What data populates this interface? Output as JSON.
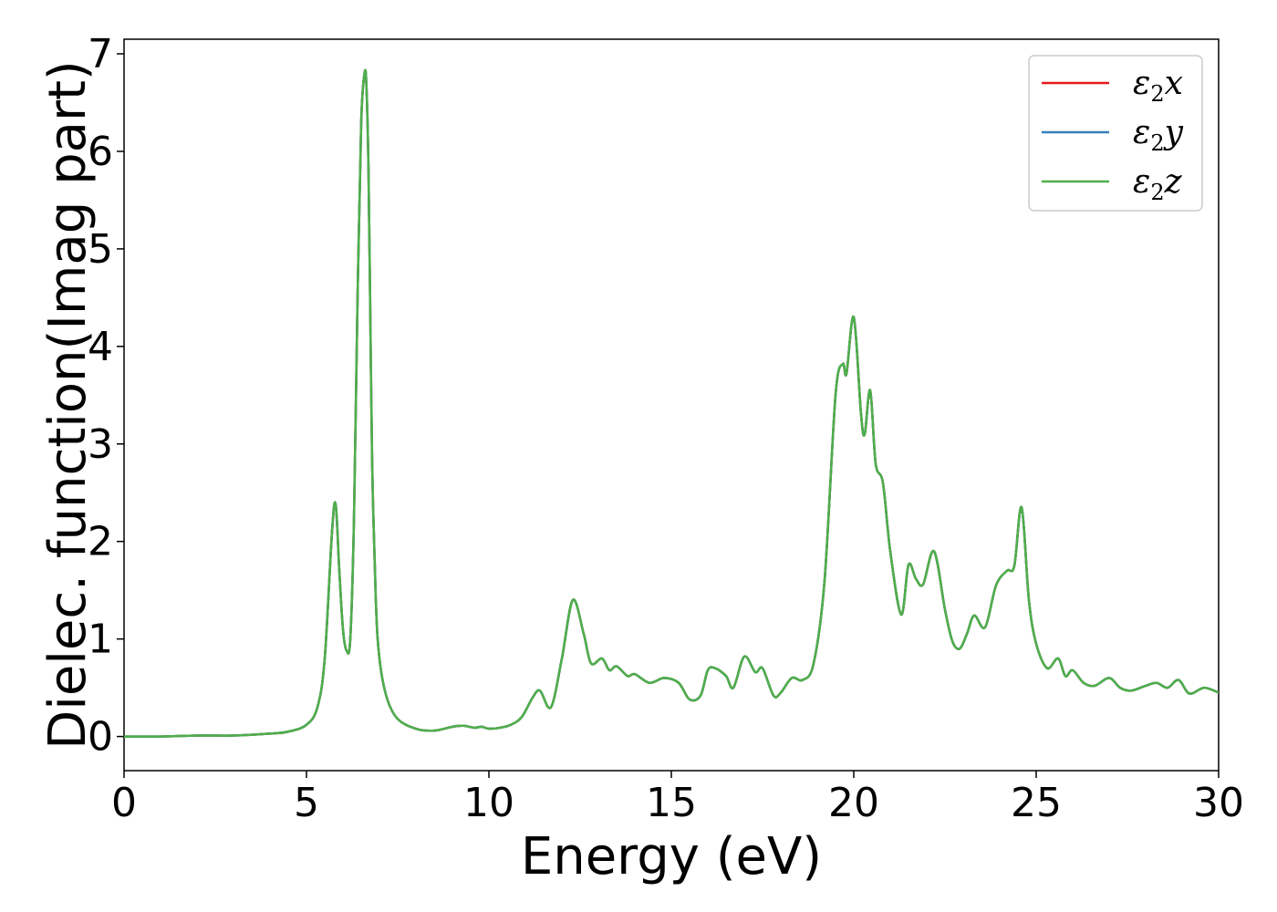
{
  "chart_data": {
    "type": "line",
    "title": "",
    "xlabel": "Energy (eV)",
    "ylabel": "Dielec. function(Imag part)",
    "xlim": [
      0,
      30
    ],
    "ylim": [
      -0.35,
      7.15
    ],
    "xticks": [
      0,
      5,
      10,
      15,
      20,
      25,
      30
    ],
    "xtick_labels": [
      "0",
      "5",
      "10",
      "15",
      "20",
      "25",
      "30"
    ],
    "yticks": [
      0,
      1,
      2,
      3,
      4,
      5,
      6,
      7
    ],
    "ytick_labels": [
      "0",
      "1",
      "2",
      "3",
      "4",
      "5",
      "6",
      "7"
    ],
    "grid": false,
    "legend_position": "top-right",
    "x": [
      0,
      1,
      2,
      3,
      4,
      4.5,
      5,
      5.3,
      5.5,
      5.7,
      5.8,
      5.9,
      6.0,
      6.1,
      6.2,
      6.3,
      6.4,
      6.5,
      6.6,
      6.65,
      6.7,
      6.75,
      6.8,
      6.9,
      7.0,
      7.2,
      7.5,
      8.0,
      8.5,
      9.0,
      9.3,
      9.6,
      9.8,
      10.0,
      10.3,
      10.6,
      10.9,
      11.2,
      11.4,
      11.7,
      12.0,
      12.3,
      12.6,
      12.8,
      13.1,
      13.3,
      13.5,
      13.8,
      14.0,
      14.4,
      14.8,
      15.2,
      15.5,
      15.8,
      16.0,
      16.2,
      16.5,
      16.7,
      17.0,
      17.3,
      17.5,
      17.8,
      18.0,
      18.3,
      18.6,
      18.9,
      19.2,
      19.5,
      19.7,
      19.8,
      20.0,
      20.2,
      20.3,
      20.45,
      20.6,
      20.8,
      21.0,
      21.3,
      21.5,
      21.7,
      21.9,
      22.2,
      22.5,
      22.7,
      22.9,
      23.1,
      23.3,
      23.6,
      23.9,
      24.2,
      24.4,
      24.6,
      24.8,
      25.0,
      25.3,
      25.6,
      25.8,
      26.0,
      26.3,
      26.6,
      27.0,
      27.3,
      27.6,
      28.0,
      28.3,
      28.6,
      28.9,
      29.2,
      29.6,
      30.0
    ],
    "series": [
      {
        "name": "ε2x",
        "color": "#e41a1c",
        "values": [
          0.0,
          0.0,
          0.01,
          0.01,
          0.03,
          0.05,
          0.12,
          0.3,
          0.8,
          2.1,
          2.38,
          1.7,
          1.1,
          0.88,
          1.0,
          2.2,
          4.5,
          6.3,
          6.82,
          6.6,
          5.8,
          4.3,
          2.8,
          1.4,
          0.8,
          0.4,
          0.18,
          0.08,
          0.06,
          0.1,
          0.11,
          0.09,
          0.1,
          0.08,
          0.09,
          0.12,
          0.2,
          0.4,
          0.47,
          0.3,
          0.8,
          1.4,
          1.05,
          0.75,
          0.8,
          0.68,
          0.72,
          0.62,
          0.64,
          0.55,
          0.6,
          0.55,
          0.38,
          0.42,
          0.68,
          0.7,
          0.62,
          0.5,
          0.82,
          0.66,
          0.7,
          0.42,
          0.45,
          0.6,
          0.58,
          0.75,
          1.6,
          3.5,
          3.82,
          3.72,
          4.3,
          3.3,
          3.1,
          3.55,
          2.8,
          2.6,
          1.9,
          1.25,
          1.76,
          1.62,
          1.56,
          1.9,
          1.3,
          0.98,
          0.9,
          1.05,
          1.24,
          1.12,
          1.55,
          1.7,
          1.75,
          2.35,
          1.4,
          0.95,
          0.7,
          0.8,
          0.62,
          0.68,
          0.55,
          0.52,
          0.6,
          0.5,
          0.47,
          0.52,
          0.55,
          0.5,
          0.58,
          0.44,
          0.5,
          0.45
        ]
      },
      {
        "name": "ε2y",
        "color": "#377eb8",
        "values": [
          0.0,
          0.0,
          0.01,
          0.01,
          0.03,
          0.05,
          0.12,
          0.3,
          0.8,
          2.1,
          2.38,
          1.7,
          1.1,
          0.88,
          1.0,
          2.2,
          4.5,
          6.3,
          6.82,
          6.6,
          5.8,
          4.3,
          2.8,
          1.4,
          0.8,
          0.4,
          0.18,
          0.08,
          0.06,
          0.1,
          0.11,
          0.09,
          0.1,
          0.08,
          0.09,
          0.12,
          0.2,
          0.4,
          0.47,
          0.3,
          0.8,
          1.4,
          1.05,
          0.75,
          0.8,
          0.68,
          0.72,
          0.62,
          0.64,
          0.55,
          0.6,
          0.55,
          0.38,
          0.42,
          0.68,
          0.7,
          0.62,
          0.5,
          0.82,
          0.66,
          0.7,
          0.42,
          0.45,
          0.6,
          0.58,
          0.75,
          1.6,
          3.5,
          3.82,
          3.72,
          4.3,
          3.3,
          3.1,
          3.55,
          2.8,
          2.6,
          1.9,
          1.25,
          1.76,
          1.62,
          1.56,
          1.9,
          1.3,
          0.98,
          0.9,
          1.05,
          1.24,
          1.12,
          1.55,
          1.7,
          1.75,
          2.35,
          1.4,
          0.95,
          0.7,
          0.8,
          0.62,
          0.68,
          0.55,
          0.52,
          0.6,
          0.5,
          0.47,
          0.52,
          0.55,
          0.5,
          0.58,
          0.44,
          0.5,
          0.45
        ]
      },
      {
        "name": "ε2z",
        "color": "#4daf4a",
        "values": [
          0.0,
          0.0,
          0.01,
          0.01,
          0.03,
          0.05,
          0.12,
          0.3,
          0.8,
          2.1,
          2.38,
          1.7,
          1.1,
          0.88,
          1.0,
          2.2,
          4.5,
          6.3,
          6.82,
          6.6,
          5.8,
          4.3,
          2.8,
          1.4,
          0.8,
          0.4,
          0.18,
          0.08,
          0.06,
          0.1,
          0.11,
          0.09,
          0.1,
          0.08,
          0.09,
          0.12,
          0.2,
          0.4,
          0.47,
          0.3,
          0.8,
          1.4,
          1.05,
          0.75,
          0.8,
          0.68,
          0.72,
          0.62,
          0.64,
          0.55,
          0.6,
          0.55,
          0.38,
          0.42,
          0.68,
          0.7,
          0.62,
          0.5,
          0.82,
          0.66,
          0.7,
          0.42,
          0.45,
          0.6,
          0.58,
          0.75,
          1.6,
          3.5,
          3.82,
          3.72,
          4.3,
          3.3,
          3.1,
          3.55,
          2.8,
          2.6,
          1.9,
          1.25,
          1.76,
          1.62,
          1.56,
          1.9,
          1.3,
          0.98,
          0.9,
          1.05,
          1.24,
          1.12,
          1.55,
          1.7,
          1.75,
          2.35,
          1.4,
          0.95,
          0.7,
          0.8,
          0.62,
          0.68,
          0.55,
          0.52,
          0.6,
          0.5,
          0.47,
          0.52,
          0.55,
          0.5,
          0.58,
          0.44,
          0.5,
          0.45
        ]
      }
    ],
    "legend": [
      {
        "symbol": "ε",
        "sub": "2",
        "var": "x"
      },
      {
        "symbol": "ε",
        "sub": "2",
        "var": "y"
      },
      {
        "symbol": "ε",
        "sub": "2",
        "var": "z"
      }
    ]
  }
}
